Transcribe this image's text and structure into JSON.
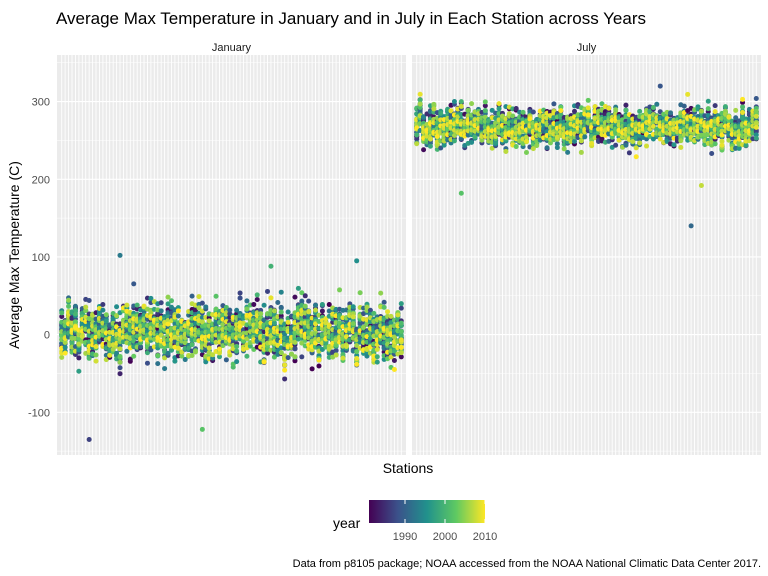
{
  "chart_data": {
    "type": "scatter",
    "title": "Average Max Temperature in January and in July in Each Station across Years",
    "xlabel": "Stations",
    "ylabel": "Average Max Temperature (C)",
    "caption": "Data from p8105 package; NOAA accessed from the NOAA National Climatic Data Center 2017.",
    "facets": [
      {
        "label": "January",
        "center": 5,
        "spread": 30,
        "range": [
          -110,
          90
        ],
        "outliers": [
          [
            8,
            -135
          ],
          [
            17,
            102
          ],
          [
            41,
            -122
          ],
          [
            61,
            88
          ],
          [
            86,
            95
          ]
        ]
      },
      {
        "label": "July",
        "center": 268,
        "spread": 20,
        "range": [
          205,
          330
        ],
        "outliers": [
          [
            13,
            182
          ],
          [
            80,
            140
          ],
          [
            83,
            192
          ],
          [
            71,
            320
          ]
        ]
      }
    ],
    "y_ticks": [
      -100,
      0,
      100,
      200,
      300
    ],
    "ylim": [
      -155,
      360
    ],
    "stations_count": 100,
    "years_range": [
      1981,
      2010
    ],
    "grid": true,
    "legend": {
      "title": "year",
      "position": "bottom",
      "ticks": [
        1990,
        2000,
        2010
      ],
      "colors": [
        "#440154",
        "#3b528b",
        "#21918c",
        "#5ec962",
        "#fde725"
      ]
    }
  }
}
